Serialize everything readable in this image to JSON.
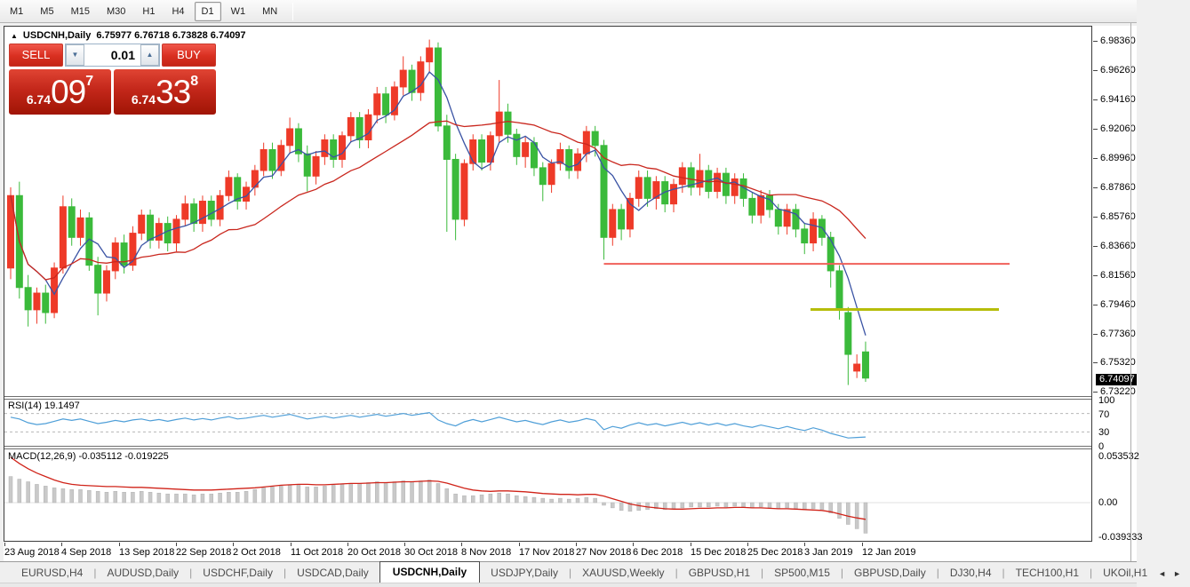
{
  "toolbar": {
    "timeframes": [
      "M1",
      "M5",
      "M15",
      "M30",
      "H1",
      "H4",
      "D1",
      "W1",
      "MN"
    ],
    "active_timeframe": "D1"
  },
  "chart": {
    "title_marker": "▲",
    "symbol_label": "USDCNH,Daily",
    "ohlc_text": "6.75977 6.76718 6.73828 6.74097",
    "trade_panel": {
      "sell_label": "SELL",
      "buy_label": "BUY",
      "volume": "0.01",
      "spinner_down": "▼",
      "spinner_up": "▲",
      "sell_price": {
        "base": "6.74",
        "big": "09",
        "sup": "7"
      },
      "buy_price": {
        "base": "6.74",
        "big": "33",
        "sup": "8"
      }
    }
  },
  "rsi_panel": {
    "header": "RSI(14) 19.1497"
  },
  "macd_panel": {
    "header": "MACD(12,26,9) -0.035112 -0.019225"
  },
  "price_axis": {
    "ticks": [
      6.9836,
      6.9626,
      6.9416,
      6.9206,
      6.8996,
      6.8786,
      6.8576,
      6.8366,
      6.8156,
      6.7946,
      6.7736,
      6.7532,
      6.7322
    ],
    "current_price": "6.74097",
    "rsi_scale": [
      100,
      70,
      30,
      0
    ],
    "macd_scale": [
      "0.053532",
      "0.00",
      "-0.039333"
    ]
  },
  "date_axis": [
    "23 Aug 2018",
    "4 Sep 2018",
    "13 Sep 2018",
    "22 Sep 2018",
    "2 Oct 2018",
    "11 Oct 2018",
    "20 Oct 2018",
    "30 Oct 2018",
    "8 Nov 2018",
    "17 Nov 2018",
    "27 Nov 2018",
    "6 Dec 2018",
    "15 Dec 2018",
    "25 Dec 2018",
    "3 Jan 2019",
    "12 Jan 2019"
  ],
  "tabs": {
    "items": [
      "EURUSD,H4",
      "AUDUSD,Daily",
      "USDCHF,Daily",
      "USDCAD,Daily",
      "USDCNH,Daily",
      "USDJPY,Daily",
      "XAUUSD,Weekly",
      "GBPUSD,H1",
      "SP500,M15",
      "GBPUSD,Daily",
      "DJ30,H4",
      "TECH100,H1",
      "UKOil,H1"
    ],
    "active": "USDCNH,Daily",
    "scroll_left": "◄",
    "scroll_right": "►"
  },
  "colors": {
    "bull": "#ee3a28",
    "bear": "#3bba3b",
    "ma_fast": "#3a53a4",
    "ma_slow": "#c9271e",
    "rsi_line": "#4f9fd8",
    "rsi_level": "#b8b8b8",
    "macd_hist": "#c9c9c9",
    "macd_signal": "#d02319",
    "resistance_line": "#f0605a",
    "support_line": "#b6bd0a"
  },
  "chart_data": {
    "type": "candlestick",
    "symbol": "USDCNH",
    "timeframe": "Daily",
    "ohlc_current": {
      "open": 6.75977,
      "high": 6.76718,
      "low": 6.73828,
      "close": 6.74097
    },
    "price_top": 6.9933,
    "price_bottom": 6.7287,
    "x_ticks": [
      "23 Aug 2018",
      "4 Sep 2018",
      "13 Sep 2018",
      "22 Sep 2018",
      "2 Oct 2018",
      "11 Oct 2018",
      "20 Oct 2018",
      "30 Oct 2018",
      "8 Nov 2018",
      "17 Nov 2018",
      "27 Nov 2018",
      "6 Dec 2018",
      "15 Dec 2018",
      "25 Dec 2018",
      "3 Jan 2019",
      "12 Jan 2019"
    ],
    "ma_fast_period": 5,
    "ma_slow_period": 20,
    "hlines": [
      {
        "name": "resistance-line",
        "price": 6.823,
        "from_candle": 68,
        "to_x": 1131,
        "stroke": 2
      },
      {
        "name": "support-line",
        "price": 6.7902,
        "from_x": 907,
        "to_x": 1119,
        "stroke": 3
      }
    ],
    "candles": [
      [
        6.82,
        6.878,
        6.812,
        6.872
      ],
      [
        6.872,
        6.882,
        6.798,
        6.806
      ],
      [
        6.806,
        6.815,
        6.778,
        6.79
      ],
      [
        6.79,
        6.806,
        6.78,
        6.802
      ],
      [
        6.802,
        6.808,
        6.78,
        6.788
      ],
      [
        6.788,
        6.824,
        6.784,
        6.82
      ],
      [
        6.82,
        6.872,
        6.816,
        6.864
      ],
      [
        6.864,
        6.87,
        6.836,
        6.842
      ],
      [
        6.842,
        6.862,
        6.836,
        6.856
      ],
      [
        6.856,
        6.86,
        6.818,
        6.822
      ],
      [
        6.822,
        6.828,
        6.786,
        6.802
      ],
      [
        6.802,
        6.822,
        6.796,
        6.818
      ],
      [
        6.818,
        6.842,
        6.812,
        6.838
      ],
      [
        6.838,
        6.844,
        6.816,
        6.822
      ],
      [
        6.822,
        6.85,
        6.818,
        6.845
      ],
      [
        6.845,
        6.862,
        6.84,
        6.858
      ],
      [
        6.858,
        6.862,
        6.834,
        6.84
      ],
      [
        6.84,
        6.856,
        6.834,
        6.852
      ],
      [
        6.852,
        6.857,
        6.832,
        6.838
      ],
      [
        6.838,
        6.858,
        6.832,
        6.855
      ],
      [
        6.855,
        6.872,
        6.85,
        6.866
      ],
      [
        6.866,
        6.87,
        6.846,
        6.852
      ],
      [
        6.852,
        6.872,
        6.846,
        6.868
      ],
      [
        6.868,
        6.872,
        6.85,
        6.855
      ],
      [
        6.855,
        6.876,
        6.85,
        6.872
      ],
      [
        6.872,
        6.89,
        6.868,
        6.885
      ],
      [
        6.885,
        6.888,
        6.862,
        6.868
      ],
      [
        6.868,
        6.882,
        6.862,
        6.878
      ],
      [
        6.878,
        6.894,
        6.872,
        6.89
      ],
      [
        6.89,
        6.91,
        6.886,
        6.905
      ],
      [
        6.905,
        6.91,
        6.884,
        6.89
      ],
      [
        6.89,
        6.912,
        6.886,
        6.908
      ],
      [
        6.908,
        6.928,
        6.902,
        6.92
      ],
      [
        6.92,
        6.924,
        6.896,
        6.902
      ],
      [
        6.902,
        6.908,
        6.875,
        6.886
      ],
      [
        6.886,
        6.904,
        6.88,
        6.9
      ],
      [
        6.9,
        6.916,
        6.894,
        6.912
      ],
      [
        6.912,
        6.916,
        6.892,
        6.898
      ],
      [
        6.898,
        6.918,
        6.892,
        6.915
      ],
      [
        6.915,
        6.932,
        6.91,
        6.928
      ],
      [
        6.928,
        6.932,
        6.906,
        6.912
      ],
      [
        6.912,
        6.934,
        6.906,
        6.93
      ],
      [
        6.93,
        6.95,
        6.924,
        6.945
      ],
      [
        6.945,
        6.95,
        6.924,
        6.93
      ],
      [
        6.93,
        6.954,
        6.926,
        6.95
      ],
      [
        6.95,
        6.972,
        6.944,
        6.962
      ],
      [
        6.962,
        6.966,
        6.94,
        6.946
      ],
      [
        6.946,
        6.972,
        6.94,
        6.968
      ],
      [
        6.968,
        6.984,
        6.96,
        6.978
      ],
      [
        6.978,
        6.982,
        6.918,
        6.922
      ],
      [
        6.922,
        6.93,
        6.846,
        6.898
      ],
      [
        6.898,
        6.902,
        6.84,
        6.855
      ],
      [
        6.855,
        6.898,
        6.85,
        6.895
      ],
      [
        6.895,
        6.916,
        6.89,
        6.912
      ],
      [
        6.912,
        6.916,
        6.89,
        6.896
      ],
      [
        6.896,
        6.918,
        6.89,
        6.915
      ],
      [
        6.915,
        6.955,
        6.91,
        6.932
      ],
      [
        6.932,
        6.938,
        6.91,
        6.916
      ],
      [
        6.916,
        6.92,
        6.894,
        6.9
      ],
      [
        6.9,
        6.914,
        6.892,
        6.91
      ],
      [
        6.91,
        6.914,
        6.886,
        6.892
      ],
      [
        6.892,
        6.896,
        6.868,
        6.88
      ],
      [
        6.88,
        6.898,
        6.874,
        6.895
      ],
      [
        6.895,
        6.91,
        6.89,
        6.905
      ],
      [
        6.905,
        6.908,
        6.884,
        6.89
      ],
      [
        6.89,
        6.906,
        6.884,
        6.902
      ],
      [
        6.902,
        6.922,
        6.896,
        6.918
      ],
      [
        6.918,
        6.922,
        6.9,
        6.908
      ],
      [
        6.908,
        6.912,
        6.826,
        6.842
      ],
      [
        6.842,
        6.866,
        6.836,
        6.862
      ],
      [
        6.862,
        6.866,
        6.84,
        6.848
      ],
      [
        6.848,
        6.874,
        6.842,
        6.87
      ],
      [
        6.87,
        6.89,
        6.864,
        6.885
      ],
      [
        6.885,
        6.89,
        6.864,
        6.87
      ],
      [
        6.87,
        6.886,
        6.862,
        6.882
      ],
      [
        6.882,
        6.886,
        6.86,
        6.866
      ],
      [
        6.866,
        6.884,
        6.86,
        6.88
      ],
      [
        6.88,
        6.896,
        6.874,
        6.892
      ],
      [
        6.892,
        6.896,
        6.872,
        6.878
      ],
      [
        6.878,
        6.902,
        6.872,
        6.89
      ],
      [
        6.89,
        6.894,
        6.87,
        6.875
      ],
      [
        6.875,
        6.892,
        6.87,
        6.888
      ],
      [
        6.888,
        6.892,
        6.866,
        6.872
      ],
      [
        6.872,
        6.888,
        6.866,
        6.884
      ],
      [
        6.884,
        6.888,
        6.864,
        6.87
      ],
      [
        6.87,
        6.874,
        6.852,
        6.858
      ],
      [
        6.858,
        6.876,
        6.852,
        6.872
      ],
      [
        6.872,
        6.876,
        6.856,
        6.862
      ],
      [
        6.862,
        6.866,
        6.844,
        6.85
      ],
      [
        6.85,
        6.866,
        6.844,
        6.862
      ],
      [
        6.862,
        6.866,
        6.842,
        6.848
      ],
      [
        6.848,
        6.852,
        6.83,
        6.838
      ],
      [
        6.838,
        6.86,
        6.832,
        6.855
      ],
      [
        6.855,
        6.858,
        6.836,
        6.842
      ],
      [
        6.842,
        6.846,
        6.806,
        6.818
      ],
      [
        6.818,
        6.822,
        6.783,
        6.79
      ],
      [
        6.788,
        6.792,
        6.736,
        6.758
      ],
      [
        6.746,
        6.758,
        6.741,
        6.751
      ],
      [
        6.75977,
        6.76718,
        6.73828,
        6.74097
      ]
    ],
    "rsi": {
      "label": "RSI(14)",
      "value": 19.1497,
      "period": 14,
      "levels": [
        70,
        30
      ],
      "range": [
        0,
        100
      ],
      "values": [
        62,
        58,
        50,
        46,
        48,
        53,
        58,
        55,
        58,
        53,
        48,
        51,
        55,
        52,
        56,
        58,
        54,
        57,
        53,
        57,
        60,
        56,
        59,
        56,
        60,
        63,
        58,
        60,
        63,
        66,
        62,
        65,
        68,
        63,
        58,
        61,
        64,
        60,
        63,
        66,
        62,
        65,
        68,
        64,
        67,
        70,
        66,
        69,
        72,
        56,
        48,
        43,
        52,
        57,
        52,
        57,
        62,
        57,
        52,
        55,
        50,
        46,
        52,
        56,
        51,
        54,
        59,
        55,
        35,
        42,
        38,
        45,
        50,
        45,
        48,
        43,
        47,
        51,
        46,
        50,
        45,
        49,
        44,
        48,
        43,
        40,
        45,
        41,
        37,
        42,
        37,
        33,
        39,
        34,
        27,
        22,
        17,
        18,
        19
      ]
    },
    "macd": {
      "label": "MACD(12,26,9)",
      "main_value": -0.035112,
      "signal_value": -0.019225,
      "scale_max": 0.053532,
      "scale_min": -0.039333,
      "histogram": [
        0.03,
        0.027,
        0.024,
        0.021,
        0.019,
        0.017,
        0.016,
        0.015,
        0.015,
        0.014,
        0.013,
        0.012,
        0.013,
        0.012,
        0.012,
        0.013,
        0.012,
        0.011,
        0.01,
        0.01,
        0.01,
        0.009,
        0.01,
        0.01,
        0.011,
        0.012,
        0.012,
        0.013,
        0.015,
        0.017,
        0.018,
        0.019,
        0.02,
        0.02,
        0.018,
        0.018,
        0.019,
        0.02,
        0.021,
        0.022,
        0.022,
        0.023,
        0.024,
        0.023,
        0.024,
        0.025,
        0.024,
        0.025,
        0.026,
        0.022,
        0.016,
        0.01,
        0.008,
        0.008,
        0.009,
        0.01,
        0.011,
        0.01,
        0.008,
        0.007,
        0.006,
        0.005,
        0.004,
        0.005,
        0.004,
        0.005,
        0.006,
        0.005,
        -0.003,
        -0.006,
        -0.009,
        -0.01,
        -0.009,
        -0.008,
        -0.007,
        -0.008,
        -0.007,
        -0.006,
        -0.005,
        -0.005,
        -0.005,
        -0.004,
        -0.005,
        -0.004,
        -0.005,
        -0.006,
        -0.005,
        -0.006,
        -0.007,
        -0.006,
        -0.007,
        -0.008,
        -0.007,
        -0.008,
        -0.012,
        -0.018,
        -0.025,
        -0.03,
        -0.0351
      ],
      "signal": [
        0.052,
        0.045,
        0.039,
        0.034,
        0.03,
        0.026,
        0.023,
        0.021,
        0.02,
        0.0195,
        0.019,
        0.0185,
        0.0185,
        0.018,
        0.0175,
        0.0175,
        0.017,
        0.0165,
        0.016,
        0.0155,
        0.015,
        0.0145,
        0.0145,
        0.0145,
        0.015,
        0.0155,
        0.016,
        0.0165,
        0.017,
        0.018,
        0.019,
        0.02,
        0.0205,
        0.021,
        0.021,
        0.0205,
        0.0205,
        0.021,
        0.0215,
        0.022,
        0.022,
        0.0225,
        0.023,
        0.023,
        0.0235,
        0.024,
        0.024,
        0.0245,
        0.025,
        0.0245,
        0.0225,
        0.0195,
        0.0165,
        0.0145,
        0.0135,
        0.013,
        0.0135,
        0.0135,
        0.013,
        0.0125,
        0.0115,
        0.0105,
        0.01,
        0.0095,
        0.0095,
        0.009,
        0.0095,
        0.0095,
        0.0075,
        0.0045,
        0.0015,
        -0.0015,
        -0.0035,
        -0.005,
        -0.006,
        -0.007,
        -0.0075,
        -0.0075,
        -0.007,
        -0.0065,
        -0.0065,
        -0.006,
        -0.006,
        -0.0055,
        -0.0055,
        -0.006,
        -0.006,
        -0.0065,
        -0.007,
        -0.007,
        -0.0075,
        -0.008,
        -0.0085,
        -0.009,
        -0.0105,
        -0.013,
        -0.0155,
        -0.0175,
        -0.0192
      ]
    }
  }
}
